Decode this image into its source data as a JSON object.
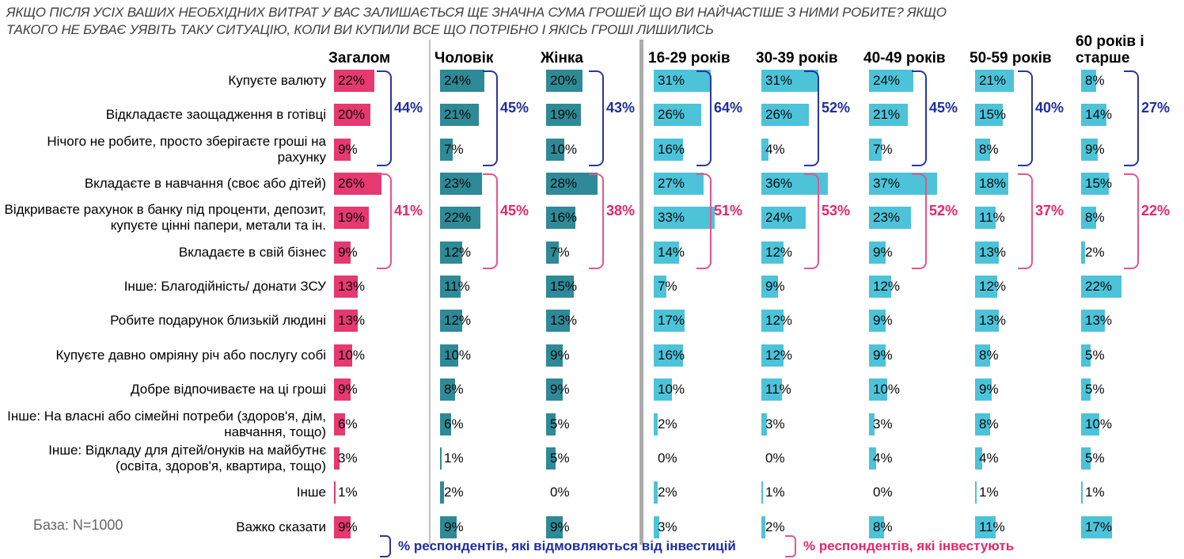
{
  "chart_data": {
    "type": "bar",
    "orientation": "horizontal",
    "title_line1": "ЯКЩО ПІСЛЯ УСІХ ВАШИХ НЕОБХІДНИХ ВИТРАТ У ВАС ЗАЛИШАЄТЬСЯ ЩЕ ЗНАЧНА СУМА ГРОШЕЙ ЩО ВИ НАЙЧАСТІШЕ З НИМИ РОБИТЕ? ЯКЩО",
    "title_line2": "ТАКОГО НЕ БУВАЄ УЯВІТЬ ТАКУ СИТУАЦІЮ, КОЛИ ВИ КУПИЛИ ВСЕ ЩО ПОТРІБНО І ЯКІСЬ ГРОШІ ЛИШИЛИСЬ",
    "base_note": "База: N=1000",
    "value_suffix": "%",
    "xlim": [
      0,
      40
    ],
    "grid": false,
    "categories": [
      "Купуєте валюту",
      "Відкладаєте заощадження в готівці",
      "Нічого не робите, просто зберігаєте гроші на рахунку",
      "Вкладаєте в навчання (своє або дітей)",
      "Відкриваєте рахунок в банку під проценти, депозит, купуєте цінні папери, метали та ін.",
      "Вкладаєте в свій бізнес",
      "Інше: Благодійність/ донати ЗСУ",
      "Робите подарунок близькій людині",
      "Купуєте давно омріяну річ або послугу собі",
      "Добре відпочиваєте на ці гроші",
      "Інше: На власні або сімейні потреби (здоров'я, дім, навчання, тощо)",
      "Інше: Відкладу для дітей/онуків на майбутнє (освіта, здоров'я, квартира, тощо)",
      "Інше",
      "Важко сказати"
    ],
    "series": [
      {
        "name": "Загалом",
        "group": "total",
        "bar_color": "#e5396f",
        "values": [
          22,
          20,
          9,
          26,
          19,
          9,
          13,
          13,
          10,
          9,
          6,
          3,
          1,
          9
        ],
        "refuse_total": 44,
        "invest_total": 41
      },
      {
        "name": "Чоловік",
        "group": "gender",
        "bar_color": "#2e8a96",
        "values": [
          24,
          21,
          7,
          23,
          22,
          12,
          11,
          12,
          10,
          8,
          6,
          1,
          2,
          9
        ],
        "refuse_total": 45,
        "invest_total": 45
      },
      {
        "name": "Жінка",
        "group": "gender",
        "bar_color": "#2e8a96",
        "values": [
          20,
          19,
          10,
          28,
          16,
          7,
          15,
          13,
          9,
          9,
          5,
          5,
          0,
          9
        ],
        "refuse_total": 43,
        "invest_total": 38
      },
      {
        "name": "16-29 років",
        "group": "age",
        "bar_color": "#4cc3d9",
        "values": [
          31,
          26,
          16,
          27,
          33,
          14,
          7,
          17,
          16,
          10,
          2,
          0,
          2,
          3
        ],
        "refuse_total": 64,
        "invest_total": 51
      },
      {
        "name": "30-39 років",
        "group": "age",
        "bar_color": "#4cc3d9",
        "values": [
          31,
          26,
          4,
          36,
          24,
          12,
          9,
          12,
          12,
          11,
          3,
          0,
          1,
          2
        ],
        "refuse_total": 52,
        "invest_total": 53
      },
      {
        "name": "40-49 років",
        "group": "age",
        "bar_color": "#4cc3d9",
        "values": [
          24,
          21,
          7,
          37,
          23,
          9,
          12,
          9,
          9,
          10,
          3,
          4,
          0,
          8
        ],
        "refuse_total": 45,
        "invest_total": 52
      },
      {
        "name": "50-59 років",
        "group": "age",
        "bar_color": "#4cc3d9",
        "values": [
          21,
          15,
          8,
          18,
          11,
          13,
          12,
          13,
          8,
          9,
          8,
          4,
          1,
          11
        ],
        "refuse_total": 40,
        "invest_total": 37
      },
      {
        "name": "60 років і старше",
        "group": "age",
        "bar_color": "#4cc3d9",
        "values": [
          8,
          14,
          9,
          15,
          8,
          2,
          22,
          13,
          5,
          5,
          10,
          5,
          1,
          17
        ],
        "refuse_total": 27,
        "invest_total": 22
      }
    ],
    "brackets": {
      "refuse": {
        "rows": [
          0,
          2
        ],
        "line_color": "#2a35a0",
        "text_color": "#1f2d9e",
        "legend": "% респондентів, які відмовляються від інвестицій"
      },
      "invest": {
        "rows": [
          3,
          5
        ],
        "line_color": "#e8538a",
        "text_color": "#e7246b",
        "legend": "% респондентів, які інвестують"
      }
    },
    "legend_position": "bottom"
  }
}
